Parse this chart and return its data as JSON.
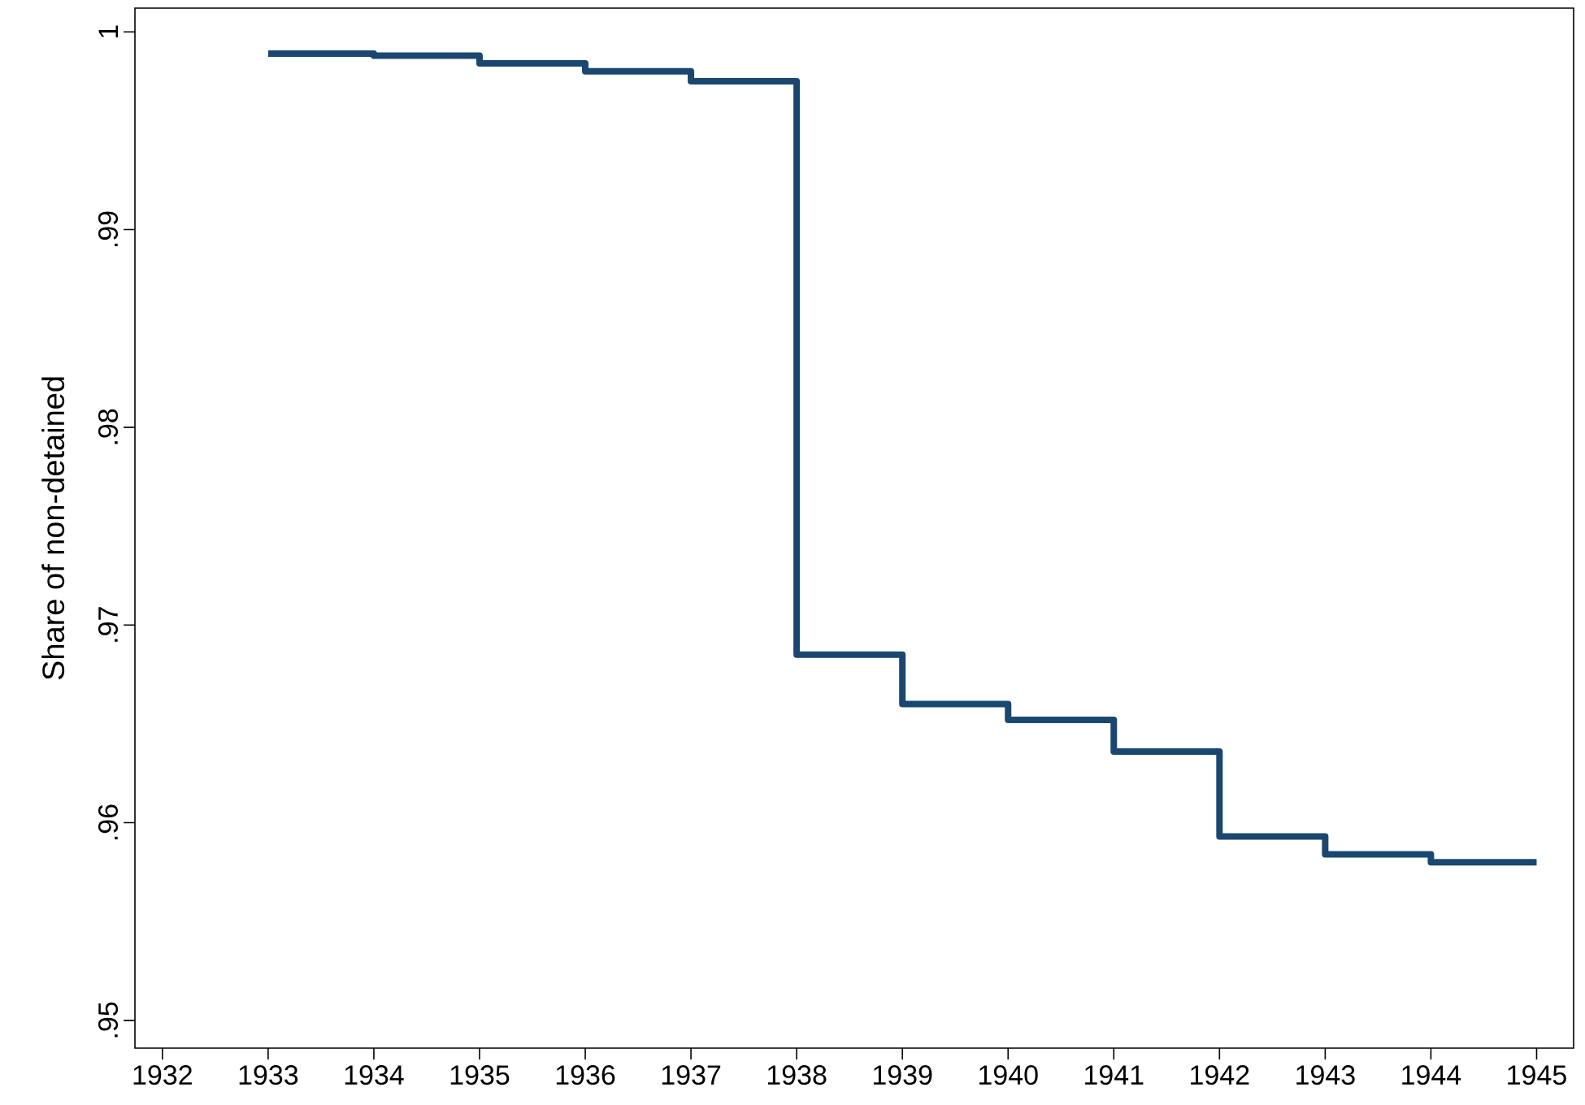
{
  "chart_data": {
    "type": "step",
    "ylabel": "Share of non-detained",
    "x": [
      1933,
      1934,
      1935,
      1936,
      1937,
      1938,
      1939,
      1940,
      1941,
      1942,
      1943,
      1944,
      1945
    ],
    "series": [
      {
        "color": "#1a476f",
        "values": [
          0.9989,
          0.9988,
          0.9984,
          0.998,
          0.9975,
          0.9685,
          0.966,
          0.9652,
          0.9636,
          0.9593,
          0.9584,
          0.958,
          0.958
        ]
      }
    ],
    "xlim": [
      1931.74,
      1945.35
    ],
    "xticks": [
      1932,
      1933,
      1934,
      1935,
      1936,
      1937,
      1938,
      1939,
      1940,
      1941,
      1942,
      1943,
      1944,
      1945
    ],
    "ylim": [
      0.9486,
      1.0012
    ],
    "yticks": [
      {
        "value": 0.95,
        "label": ".95"
      },
      {
        "value": 0.96,
        "label": ".96"
      },
      {
        "value": 0.97,
        "label": ".97"
      },
      {
        "value": 0.98,
        "label": ".98"
      },
      {
        "value": 0.99,
        "label": ".99"
      },
      1
    ],
    "grid": false,
    "line_style": "solid"
  }
}
